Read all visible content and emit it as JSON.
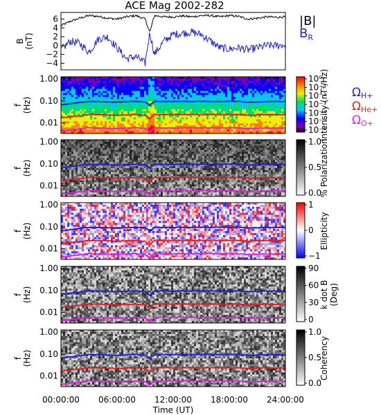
{
  "chart_data": {
    "title": "ACE Mag 2002-282",
    "xlabel": "Time (UT)",
    "xticks": [
      "00:00:00",
      "06:00:00",
      "12:00:00",
      "18:00:00",
      "24:00:00"
    ],
    "xlim_hours": [
      0,
      24
    ],
    "panels": [
      {
        "type": "line",
        "ylabel_top": "B",
        "ylabel_bottom": "(nT)",
        "ylim": [
          -5.5,
          7.5
        ],
        "yticks": [
          "6",
          "4",
          "2",
          "0",
          "−2",
          "−4"
        ],
        "ytick_values": [
          6,
          4,
          2,
          0,
          -2,
          -4
        ],
        "series": [
          {
            "name": "|B|",
            "color": "#000000",
            "x": [
              0,
              1,
              2,
              3,
              4,
              5,
              6,
              7,
              8,
              9,
              9.5,
              10,
              11,
              12,
              13,
              14,
              15,
              16,
              17,
              18,
              19,
              20,
              21,
              22,
              23,
              24
            ],
            "y": [
              4.5,
              5.5,
              6.2,
              6.8,
              6.6,
              6.2,
              6.0,
              6.5,
              6.8,
              6.0,
              3.0,
              6.8,
              6.5,
              6.5,
              6.7,
              6.5,
              6.8,
              6.8,
              6.5,
              6.8,
              6.6,
              6.0,
              6.2,
              6.5,
              6.4,
              6.5
            ]
          },
          {
            "name": "B",
            "sub": "R",
            "color": "#1f1fd0",
            "x": [
              0,
              1,
              2,
              3,
              4,
              5,
              6,
              7,
              8,
              9,
              9.5,
              10,
              11,
              12,
              13,
              14,
              15,
              16,
              17,
              18,
              19,
              20,
              21,
              22,
              23,
              24
            ],
            "y": [
              -1.0,
              1.0,
              0.5,
              -1.5,
              1.5,
              2.0,
              -0.5,
              -3.0,
              -2.5,
              -4.0,
              3.0,
              -2.0,
              1.0,
              2.5,
              2.8,
              3.0,
              2.5,
              1.0,
              -0.5,
              -0.8,
              -0.5,
              -1.0,
              -0.5,
              0.0,
              0.0,
              0.2
            ]
          }
        ]
      },
      {
        "type": "heatmap",
        "quantity": "intensity",
        "ylabel_top": "f",
        "ylabel_bottom": "(Hz)",
        "yticks": [
          "1.00",
          "0.10",
          "0.01"
        ],
        "colorbar_label": "Intensity (nT²/Hz)",
        "colorbar_ticks": [
          "10⁰",
          "10⁻¹",
          "10⁻²",
          "10⁻³",
          "10⁻⁴",
          "10⁻⁵",
          "10⁻⁶"
        ],
        "gyro_legend": [
          {
            "symbol": "Ω",
            "sub": "H+",
            "color": "#1f1fd0"
          },
          {
            "symbol": "Ω",
            "sub": "He+",
            "color": "#e02020"
          },
          {
            "symbol": "Ω",
            "sub": "O+",
            "color": "#e020e0"
          }
        ]
      },
      {
        "type": "heatmap",
        "quantity": "polarization",
        "ylabel_top": "f",
        "ylabel_bottom": "(Hz)",
        "yticks": [
          "1.00",
          "0.10",
          "0.01"
        ],
        "colorbar_label": "% Polarization",
        "colorbar_ticks": [
          "1.0",
          "0.5",
          "0.0"
        ]
      },
      {
        "type": "heatmap",
        "quantity": "ellipticity",
        "ylabel_top": "f",
        "ylabel_bottom": "(Hz)",
        "yticks": [
          "1.00",
          "0.10",
          "0.01"
        ],
        "colorbar_label": "Ellipticity",
        "colorbar_ticks": [
          "1",
          "0",
          "−1"
        ]
      },
      {
        "type": "heatmap",
        "quantity": "kdotb",
        "ylabel_top": "f",
        "ylabel_bottom": "(Hz)",
        "yticks": [
          "1.00",
          "0.10",
          "0.01"
        ],
        "colorbar_label": "k dot B (Deg)",
        "colorbar_label_lines": [
          "k dot B",
          "(Deg)"
        ],
        "colorbar_ticks": [
          "90",
          "60",
          "30",
          "0"
        ]
      },
      {
        "type": "heatmap",
        "quantity": "coherency",
        "ylabel_top": "f",
        "ylabel_bottom": "(Hz)",
        "yticks": [
          "1.00",
          "0.10",
          "0.01"
        ],
        "colorbar_label": "Coherency",
        "colorbar_ticks": [
          "1.0",
          "0.5",
          "0.0"
        ]
      }
    ],
    "gyrofrequencies": {
      "x": [
        0,
        1,
        2,
        3,
        4,
        5,
        6,
        7,
        8,
        9,
        9.5,
        10,
        11,
        12,
        13,
        14,
        15,
        16,
        17,
        18,
        19,
        20,
        21,
        22,
        23,
        24
      ],
      "H+": [
        0.065,
        0.075,
        0.085,
        0.095,
        0.094,
        0.09,
        0.088,
        0.092,
        0.096,
        0.09,
        0.06,
        0.096,
        0.094,
        0.094,
        0.095,
        0.094,
        0.096,
        0.096,
        0.094,
        0.096,
        0.095,
        0.088,
        0.09,
        0.094,
        0.093,
        0.094
      ],
      "He+": [
        0.017,
        0.019,
        0.021,
        0.024,
        0.024,
        0.023,
        0.022,
        0.023,
        0.024,
        0.022,
        0.015,
        0.024,
        0.024,
        0.024,
        0.024,
        0.024,
        0.024,
        0.024,
        0.024,
        0.024,
        0.024,
        0.022,
        0.023,
        0.024,
        0.023,
        0.024
      ],
      "O+": [
        0.0041,
        0.0047,
        0.0053,
        0.006,
        0.0059,
        0.0056,
        0.0055,
        0.0058,
        0.006,
        0.0056,
        0.0038,
        0.006,
        0.0059,
        0.0059,
        0.006,
        0.0059,
        0.006,
        0.006,
        0.0059,
        0.006,
        0.0059,
        0.0055,
        0.0056,
        0.0059,
        0.0058,
        0.0059
      ]
    }
  }
}
